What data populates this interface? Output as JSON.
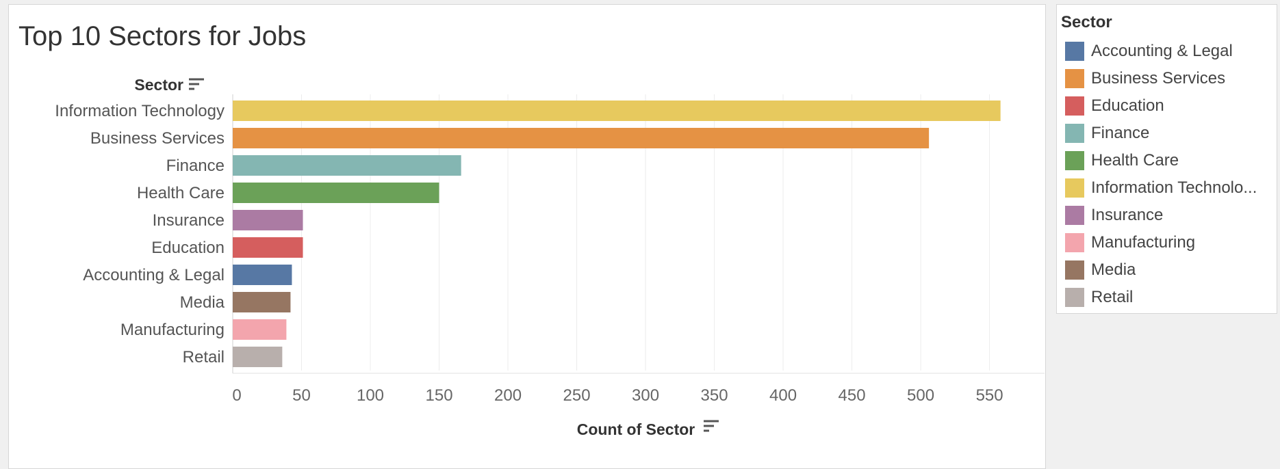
{
  "chart_data": {
    "type": "bar",
    "orientation": "horizontal",
    "title": "Top 10 Sectors for Jobs",
    "ylabel": "Sector",
    "xlabel": "Count of Sector",
    "categories": [
      "Information Technology",
      "Business Services",
      "Finance",
      "Health Care",
      "Insurance",
      "Education",
      "Accounting & Legal",
      "Media",
      "Manufacturing",
      "Retail"
    ],
    "values": [
      558,
      506,
      166,
      150,
      51,
      51,
      43,
      42,
      39,
      36
    ],
    "colors": [
      "#E7C95E",
      "#E59244",
      "#84B6B2",
      "#6BA158",
      "#AB7BA3",
      "#D55E5E",
      "#5778A4",
      "#967662",
      "#F3A5AD",
      "#B8AFAC"
    ],
    "xlim": [
      0,
      590
    ],
    "xticks": [
      0,
      50,
      100,
      150,
      200,
      250,
      300,
      350,
      400,
      450,
      500,
      550
    ],
    "grid": "vertical",
    "legend": {
      "title": "Sector",
      "placement": "right",
      "items": [
        {
          "label": "Accounting & Legal",
          "color": "#5778A4"
        },
        {
          "label": "Business Services",
          "color": "#E59244"
        },
        {
          "label": "Education",
          "color": "#D55E5E"
        },
        {
          "label": "Finance",
          "color": "#84B6B2"
        },
        {
          "label": "Health Care",
          "color": "#6BA158"
        },
        {
          "label": "Information Technolo...",
          "color": "#E7C95E"
        },
        {
          "label": "Insurance",
          "color": "#AB7BA3"
        },
        {
          "label": "Manufacturing",
          "color": "#F3A5AD"
        },
        {
          "label": "Media",
          "color": "#967662"
        },
        {
          "label": "Retail",
          "color": "#B8AFAC"
        }
      ]
    }
  }
}
